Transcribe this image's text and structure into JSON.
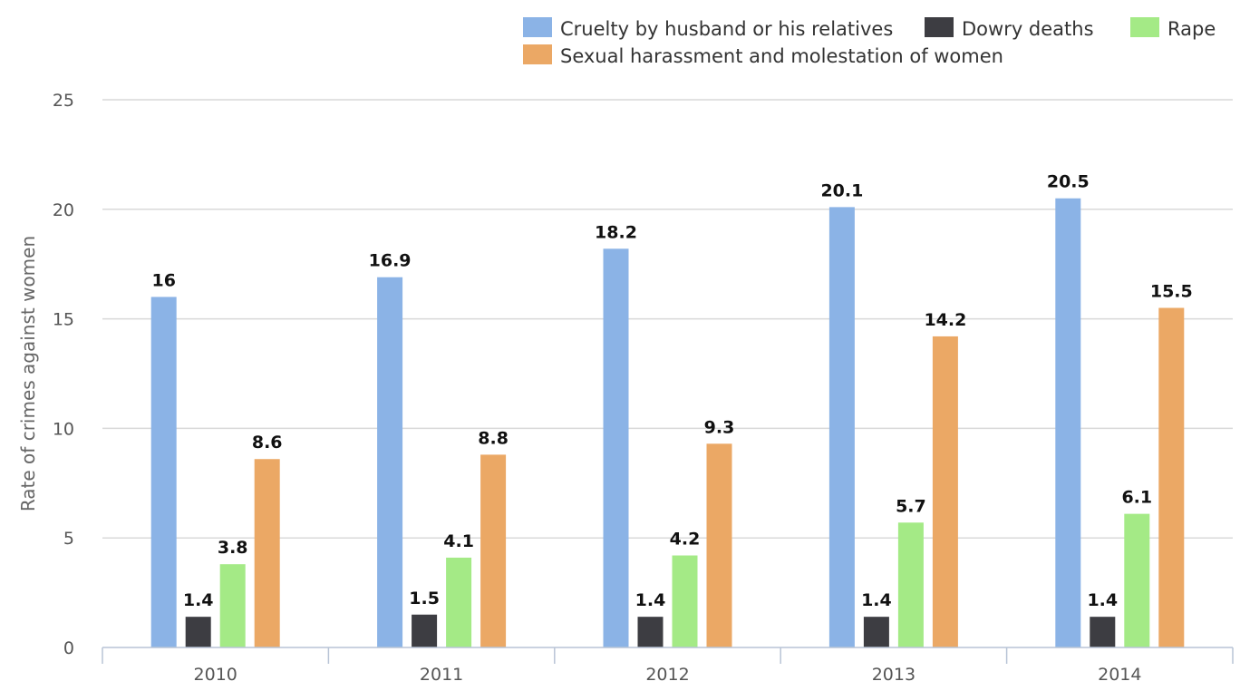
{
  "chart_data": {
    "type": "bar",
    "title": "",
    "xlabel": "",
    "ylabel": "Rate of crimes against women",
    "ylim": [
      0,
      25
    ],
    "yticks": [
      0,
      5,
      10,
      15,
      20,
      25
    ],
    "grid": true,
    "legend_position": "top-right",
    "categories": [
      "2010",
      "2011",
      "2012",
      "2013",
      "2014"
    ],
    "series": [
      {
        "name": "Cruelty by husband or his relatives",
        "color": "#8bb3e6",
        "values": [
          16,
          16.9,
          18.2,
          20.1,
          20.5
        ]
      },
      {
        "name": "Dowry deaths",
        "color": "#3d3d42",
        "values": [
          1.4,
          1.5,
          1.4,
          1.4,
          1.4
        ]
      },
      {
        "name": "Rape",
        "color": "#a4ea86",
        "values": [
          3.8,
          4.1,
          4.2,
          5.7,
          6.1
        ]
      },
      {
        "name": "Sexual harassment and molestation of women",
        "color": "#eba865",
        "values": [
          8.6,
          8.8,
          9.3,
          14.2,
          15.5
        ]
      }
    ]
  }
}
